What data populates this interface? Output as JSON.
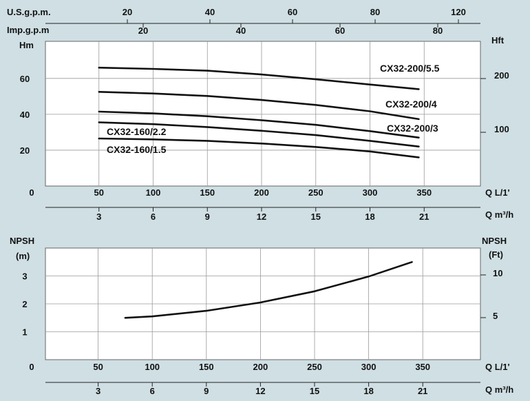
{
  "chart_data": [
    {
      "type": "line",
      "name": "performance",
      "top_axes": [
        {
          "label": "U.S.g.p.m.",
          "ticks": [
            20,
            40,
            60,
            80,
            120
          ]
        },
        {
          "label": "Imp.g.p.m",
          "ticks": [
            20,
            40,
            60,
            80
          ]
        }
      ],
      "left_axis": {
        "label": "Hm",
        "ticks": [
          0,
          20,
          40,
          60
        ],
        "range": [
          0,
          80
        ]
      },
      "right_axis": {
        "label": "Hft",
        "ticks": [
          100,
          200
        ]
      },
      "x_axis": {
        "label": "Q L/1'",
        "ticks": [
          50,
          100,
          150,
          200,
          250,
          300,
          350
        ],
        "range": [
          0,
          400
        ]
      },
      "x_axis_2": {
        "label": "Q m³/h",
        "ticks": [
          3,
          6,
          9,
          12,
          15,
          18,
          21
        ]
      },
      "series": [
        {
          "name": "CX32-200/5.5",
          "x": [
            50,
            100,
            150,
            200,
            250,
            300,
            345
          ],
          "y": [
            66,
            65.3,
            64.3,
            62.2,
            59.5,
            56.6,
            54
          ]
        },
        {
          "name": "CX32-200/4",
          "x": [
            50,
            100,
            150,
            200,
            250,
            300,
            345
          ],
          "y": [
            52.5,
            51.6,
            50.2,
            48.0,
            45.2,
            41.7,
            37.3
          ]
        },
        {
          "name": "CX32-200/3",
          "x": [
            50,
            100,
            150,
            200,
            250,
            300,
            345
          ],
          "y": [
            41.5,
            40.5,
            38.9,
            36.7,
            34.1,
            30.6,
            27
          ]
        },
        {
          "name": "CX32-160/2.2",
          "x": [
            50,
            100,
            150,
            200,
            250,
            300,
            345
          ],
          "y": [
            35.5,
            34.5,
            32.9,
            30.8,
            28.4,
            25.2,
            22
          ]
        },
        {
          "name": "CX32-160/1.5",
          "x": [
            50,
            100,
            150,
            200,
            250,
            300,
            345
          ],
          "y": [
            26.5,
            26,
            25.2,
            23.7,
            21.8,
            19.3,
            16
          ]
        }
      ]
    },
    {
      "type": "line",
      "name": "npsh",
      "left_axis": {
        "label": "NPSH",
        "unit": "(m)",
        "ticks": [
          0,
          1,
          2,
          3
        ],
        "range": [
          0,
          4
        ]
      },
      "right_axis": {
        "label": "NPSH",
        "unit": "(Ft)",
        "ticks": [
          5,
          10
        ]
      },
      "x_axis": {
        "label": "Q L/1'",
        "ticks": [
          50,
          100,
          150,
          200,
          250,
          300,
          350
        ],
        "range": [
          0,
          400
        ]
      },
      "x_axis_2": {
        "label": "Q m³/h",
        "ticks": [
          3,
          6,
          9,
          12,
          15,
          18,
          21
        ]
      },
      "series": [
        {
          "x": [
            75,
            100,
            150,
            200,
            250,
            300,
            340
          ],
          "y": [
            1.5,
            1.55,
            1.75,
            2.05,
            2.45,
            2.98,
            3.5
          ]
        }
      ]
    }
  ]
}
